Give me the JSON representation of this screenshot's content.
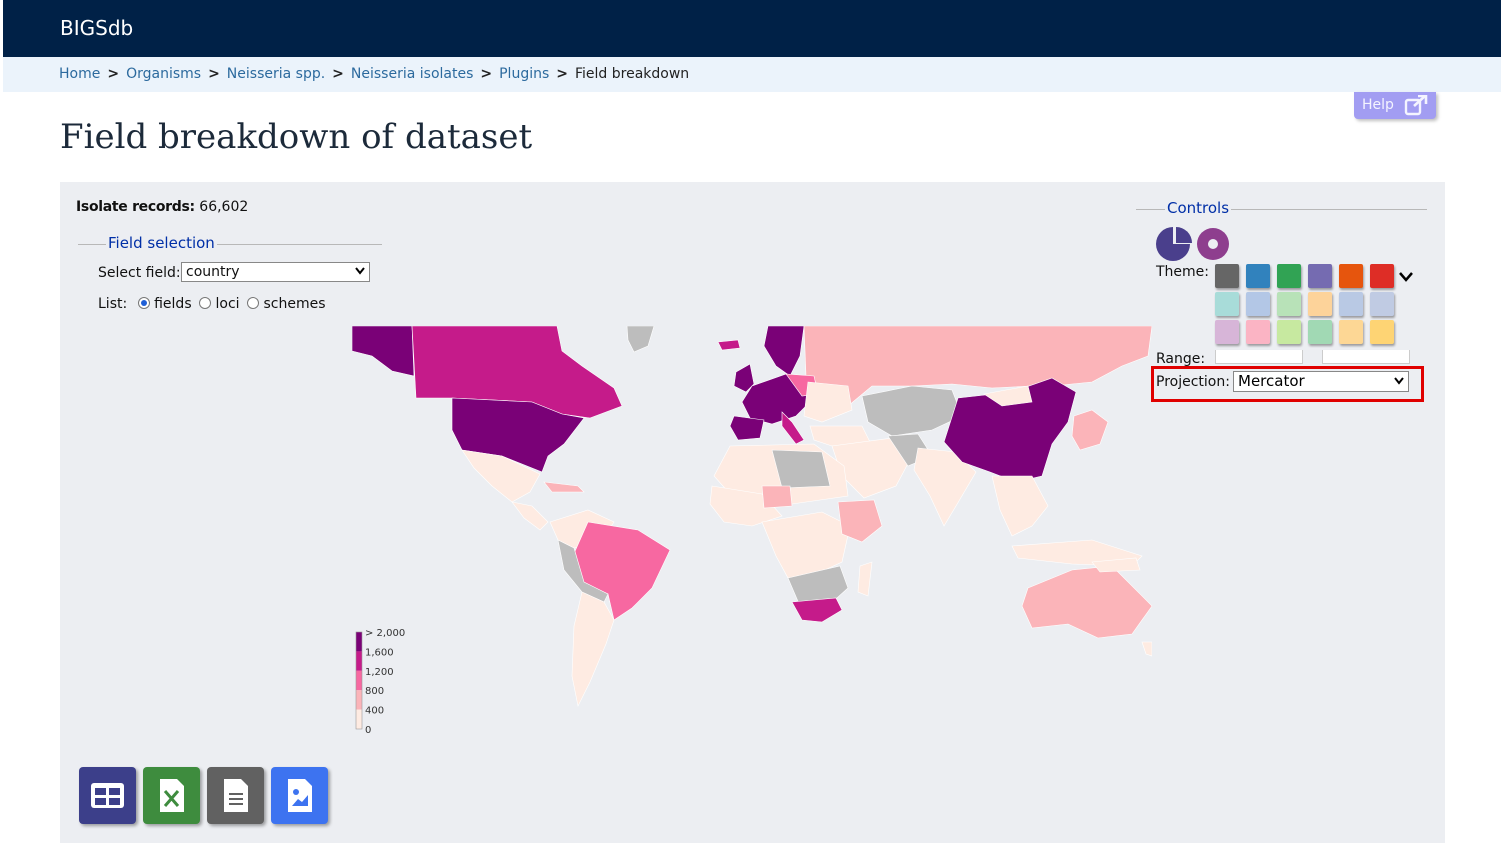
{
  "header": {
    "brand": "BIGSdb"
  },
  "breadcrumb": {
    "items": [
      "Home",
      "Organisms",
      "Neisseria spp.",
      "Neisseria isolates",
      "Plugins"
    ],
    "current": "Field breakdown",
    "separator": ">"
  },
  "help": {
    "label": "Help",
    "icon": "external-link-icon"
  },
  "page": {
    "title": "Field breakdown of dataset"
  },
  "summary": {
    "label": "Isolate records:",
    "value": "66,602"
  },
  "field_selection": {
    "legend": "Field selection",
    "select_label": "Select field:",
    "select_value": "country",
    "list_label": "List:",
    "options": [
      {
        "label": "fields",
        "checked": true
      },
      {
        "label": "loci",
        "checked": false
      },
      {
        "label": "schemes",
        "checked": false
      }
    ]
  },
  "controls": {
    "legend": "Controls",
    "chart_icons": [
      "pie-chart-icon",
      "donut-chart-icon"
    ],
    "theme_label": "Theme:",
    "theme_swatches": [
      [
        "#666666",
        "#3182bd",
        "#31a354",
        "#756bb1",
        "#e6550d",
        "#de2d26"
      ],
      [
        "#a8dcd9",
        "#b3c7e6",
        "#b8e2b8",
        "#fdd39a",
        "#b9c9e4",
        "#c0cbe3"
      ],
      [
        "#d7b5d8",
        "#fbb4c4",
        "#c7e9a0",
        "#a1d9b4",
        "#fdd795",
        "#fed474"
      ]
    ],
    "range_label": "Range:",
    "projection_label": "Projection:",
    "projection_value": "Mercator"
  },
  "map_legend": {
    "labels": [
      "> 2,000",
      "1,600",
      "1,200",
      "800",
      "400",
      "0"
    ],
    "colors": [
      "#7a0177",
      "#c51b8a",
      "#f768a1",
      "#fbb4b9",
      "#feebe2"
    ]
  },
  "downloads": [
    {
      "name": "table-view-icon",
      "color": "#3c3f8a"
    },
    {
      "name": "excel-file-icon",
      "color": "#3e8c3e"
    },
    {
      "name": "text-file-icon",
      "color": "#616161"
    },
    {
      "name": "image-file-icon",
      "color": "#3d73f0"
    }
  ]
}
